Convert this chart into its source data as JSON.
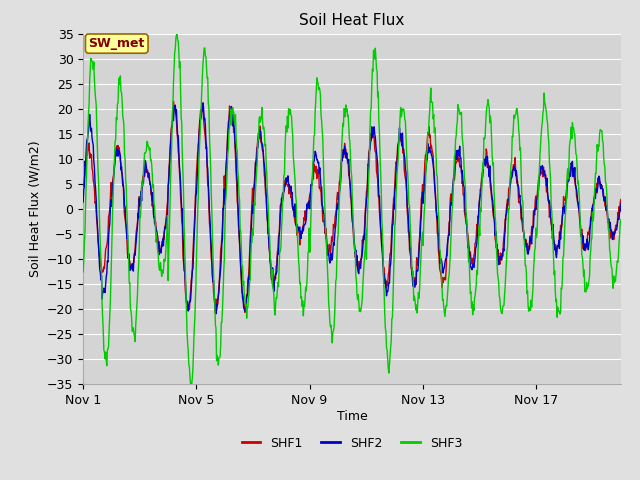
{
  "title": "Soil Heat Flux",
  "xlabel": "Time",
  "ylabel": "Soil Heat Flux (W/m2)",
  "ylim": [
    -35,
    35
  ],
  "yticks": [
    -35,
    -30,
    -25,
    -20,
    -15,
    -10,
    -5,
    0,
    5,
    10,
    15,
    20,
    25,
    30,
    35
  ],
  "colors": {
    "SHF1": "#cc0000",
    "SHF2": "#0000cc",
    "SHF3": "#00cc00"
  },
  "legend_label": "SW_met",
  "legend_box_facecolor": "#ffff99",
  "legend_box_edgecolor": "#996600",
  "legend_text_color": "#800000",
  "fig_facecolor": "#e0e0e0",
  "ax_facecolor": "#d4d4d4",
  "grid_color": "#ffffff",
  "n_days": 19,
  "points_per_day": 48,
  "x_tick_positions": [
    0,
    4,
    8,
    12,
    16
  ],
  "x_tick_labels": [
    "Nov 1",
    "Nov 5",
    "Nov 9",
    "Nov 13",
    "Nov 17"
  ]
}
